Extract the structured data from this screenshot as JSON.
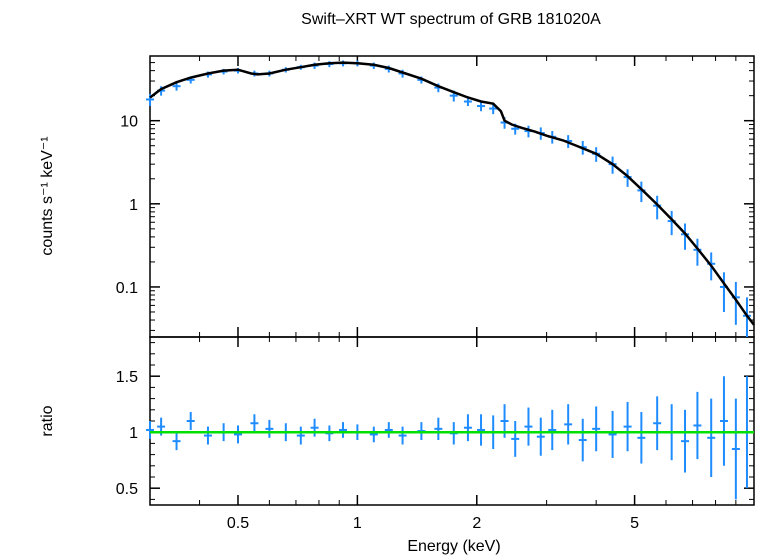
{
  "chart_data": [
    {
      "type": "scatter",
      "panel": "spectrum",
      "title": "Swift–XRT WT spectrum of GRB 181020A",
      "ylabel": "counts s⁻¹ keV⁻¹",
      "xlabel": "",
      "xscale": "log",
      "yscale": "log",
      "xlim": [
        0.3,
        10
      ],
      "ylim": [
        0.025,
        60
      ],
      "yticks": [
        0.1,
        1,
        10
      ],
      "ytick_labels": [
        "0.1",
        "1",
        "10"
      ],
      "colors": {
        "data": "#1e8cff",
        "model": "#000000"
      },
      "series": [
        {
          "kind": "data",
          "x": [
            0.3,
            0.32,
            0.35,
            0.38,
            0.42,
            0.46,
            0.5,
            0.55,
            0.6,
            0.66,
            0.72,
            0.78,
            0.85,
            0.92,
            1.0,
            1.1,
            1.2,
            1.3,
            1.45,
            1.6,
            1.75,
            1.9,
            2.05,
            2.2,
            2.35,
            2.5,
            2.7,
            2.9,
            3.1,
            3.4,
            3.7,
            4.0,
            4.4,
            4.8,
            5.2,
            5.7,
            6.2,
            6.7,
            7.2,
            7.8,
            8.4,
            9.0,
            9.6
          ],
          "y": [
            18,
            23,
            26,
            31,
            36,
            39,
            40,
            37,
            37,
            41,
            44,
            46,
            48,
            49,
            49,
            46,
            42,
            37,
            31,
            25,
            20,
            17,
            15,
            14,
            9.5,
            8.0,
            7.5,
            7.1,
            6.4,
            5.7,
            4.8,
            4.0,
            3.0,
            2.1,
            1.45,
            0.95,
            0.62,
            0.43,
            0.28,
            0.19,
            0.1,
            0.075,
            0.045
          ],
          "yerr": [
            3,
            3,
            3,
            3,
            3,
            3,
            3,
            3,
            3,
            3,
            3,
            4,
            4,
            4,
            4,
            4,
            4,
            4,
            3,
            3,
            3,
            2,
            2,
            2,
            1.5,
            1.2,
            1.2,
            1.2,
            1.1,
            1.0,
            0.9,
            0.8,
            0.7,
            0.5,
            0.4,
            0.3,
            0.2,
            0.15,
            0.1,
            0.07,
            0.05,
            0.04,
            0.03
          ]
        },
        {
          "kind": "model",
          "x": [
            0.3,
            0.32,
            0.35,
            0.38,
            0.42,
            0.46,
            0.5,
            0.54,
            0.56,
            0.6,
            0.66,
            0.72,
            0.78,
            0.85,
            0.92,
            1.0,
            1.1,
            1.2,
            1.3,
            1.45,
            1.6,
            1.75,
            1.9,
            2.05,
            2.2,
            2.3,
            2.35,
            2.45,
            2.6,
            2.8,
            3.0,
            3.3,
            3.6,
            4.0,
            4.4,
            4.8,
            5.2,
            5.7,
            6.2,
            6.7,
            7.2,
            7.8,
            8.4,
            9.0,
            9.6,
            10.0
          ],
          "y": [
            19,
            24,
            29,
            33,
            37,
            40,
            41,
            37,
            36,
            37,
            41,
            44,
            47,
            49,
            50,
            49,
            47,
            43,
            38,
            32,
            26,
            22,
            19,
            17,
            16,
            13,
            10,
            9.0,
            8.2,
            7.4,
            6.6,
            5.8,
            4.9,
            4.0,
            3.0,
            2.15,
            1.5,
            0.98,
            0.65,
            0.44,
            0.29,
            0.18,
            0.11,
            0.07,
            0.045,
            0.035
          ]
        }
      ]
    },
    {
      "type": "scatter",
      "panel": "ratio",
      "xlabel": "Energy (keV)",
      "ylabel": "ratio",
      "xscale": "log",
      "xlim": [
        0.3,
        10
      ],
      "ylim": [
        0.35,
        1.85
      ],
      "xticks": [
        0.5,
        1,
        2,
        5
      ],
      "xtick_labels": [
        "0.5",
        "1",
        "2",
        "5"
      ],
      "yticks": [
        0.5,
        1,
        1.5
      ],
      "ytick_labels": [
        "0.5",
        "1",
        "1.5"
      ],
      "reference_line": 1,
      "colors": {
        "data": "#1e8cff",
        "reference": "#00e000"
      },
      "series": [
        {
          "kind": "data",
          "x": [
            0.3,
            0.32,
            0.35,
            0.38,
            0.42,
            0.46,
            0.5,
            0.55,
            0.6,
            0.66,
            0.72,
            0.78,
            0.85,
            0.92,
            1.0,
            1.1,
            1.2,
            1.3,
            1.45,
            1.6,
            1.75,
            1.9,
            2.05,
            2.2,
            2.35,
            2.5,
            2.7,
            2.9,
            3.1,
            3.4,
            3.7,
            4.0,
            4.4,
            4.8,
            5.2,
            5.7,
            6.2,
            6.7,
            7.2,
            7.8,
            8.4,
            9.0,
            9.6
          ],
          "y": [
            1.02,
            1.05,
            0.92,
            1.1,
            0.97,
            1.0,
            0.98,
            1.08,
            1.03,
            1.0,
            0.97,
            1.04,
            0.99,
            1.02,
            1.0,
            0.98,
            1.02,
            0.97,
            1.01,
            1.03,
            0.99,
            1.04,
            1.02,
            1.0,
            1.1,
            0.94,
            1.05,
            0.96,
            1.02,
            1.07,
            0.93,
            1.03,
            0.98,
            1.05,
            0.95,
            1.08,
            1.0,
            0.92,
            1.06,
            0.95,
            1.1,
            0.85,
            1.0
          ],
          "yerr": [
            0.08,
            0.08,
            0.08,
            0.08,
            0.08,
            0.08,
            0.08,
            0.08,
            0.08,
            0.08,
            0.08,
            0.08,
            0.07,
            0.07,
            0.07,
            0.07,
            0.07,
            0.08,
            0.08,
            0.1,
            0.1,
            0.12,
            0.14,
            0.15,
            0.15,
            0.16,
            0.17,
            0.17,
            0.18,
            0.18,
            0.19,
            0.2,
            0.21,
            0.22,
            0.23,
            0.24,
            0.25,
            0.28,
            0.3,
            0.35,
            0.4,
            0.45,
            0.5
          ]
        }
      ]
    }
  ]
}
